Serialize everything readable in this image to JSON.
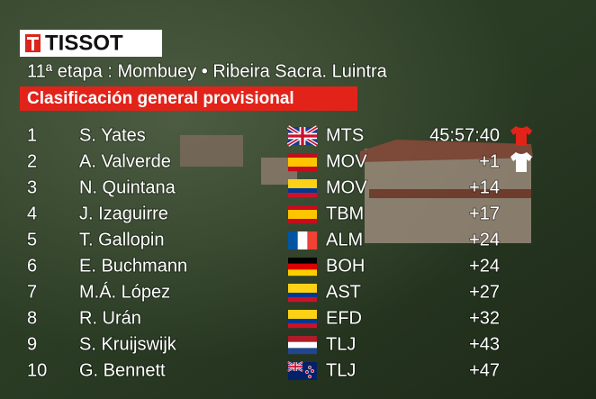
{
  "logo": "TISSOT",
  "stage": "11ª etapa : Mombuey • Ribeira Sacra. Luintra",
  "title": "Clasificación general provisional",
  "rows": [
    [
      "1",
      "S. Yates",
      "MTS",
      "45:57:40"
    ],
    [
      "2",
      "A. Valverde",
      "MOV",
      "+1"
    ],
    [
      "3",
      "N. Quintana",
      "MOV",
      "+14"
    ],
    [
      "4",
      "J. Izaguirre",
      "TBM",
      "+17"
    ],
    [
      "5",
      "T. Gallopin",
      "ALM",
      "+24"
    ],
    [
      "6",
      "E. Buchmann",
      "BOH",
      "+24"
    ],
    [
      "7",
      "M.Á. López",
      "AST",
      "+27"
    ],
    [
      "8",
      "R. Urán",
      "EFD",
      "+32"
    ],
    [
      "9",
      "S. Kruijswijk",
      "TLJ",
      "+43"
    ],
    [
      "10",
      "G. Bennett",
      "TLJ",
      "+47"
    ]
  ]
}
